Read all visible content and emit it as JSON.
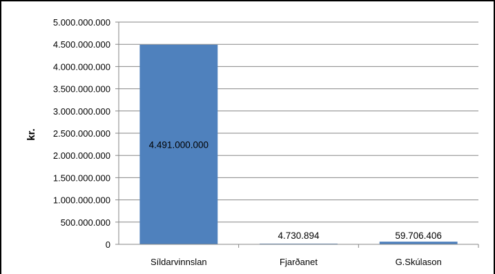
{
  "chart_data": {
    "type": "bar",
    "categories": [
      "Síldarvinnslan",
      "Fjarðanet",
      "G.Skúlason"
    ],
    "values": [
      4491000000,
      4730894,
      59706406
    ],
    "data_labels": [
      "4.491.000.000",
      "4.730.894",
      "59.706.406"
    ],
    "ylabel": "kr.",
    "ylim": [
      0,
      5000000000
    ],
    "yticks": [
      0,
      500000000,
      1000000000,
      1500000000,
      2000000000,
      2500000000,
      3000000000,
      3500000000,
      4000000000,
      4500000000,
      5000000000
    ],
    "ytick_labels": [
      "0",
      "500.000.000",
      "1.000.000.000",
      "1.500.000.000",
      "2.000.000.000",
      "2.500.000.000",
      "3.000.000.000",
      "3.500.000.000",
      "4.000.000.000",
      "4.500.000.000",
      "5.000.000.000"
    ],
    "grid": true,
    "bar_color": "#4f81bd"
  }
}
